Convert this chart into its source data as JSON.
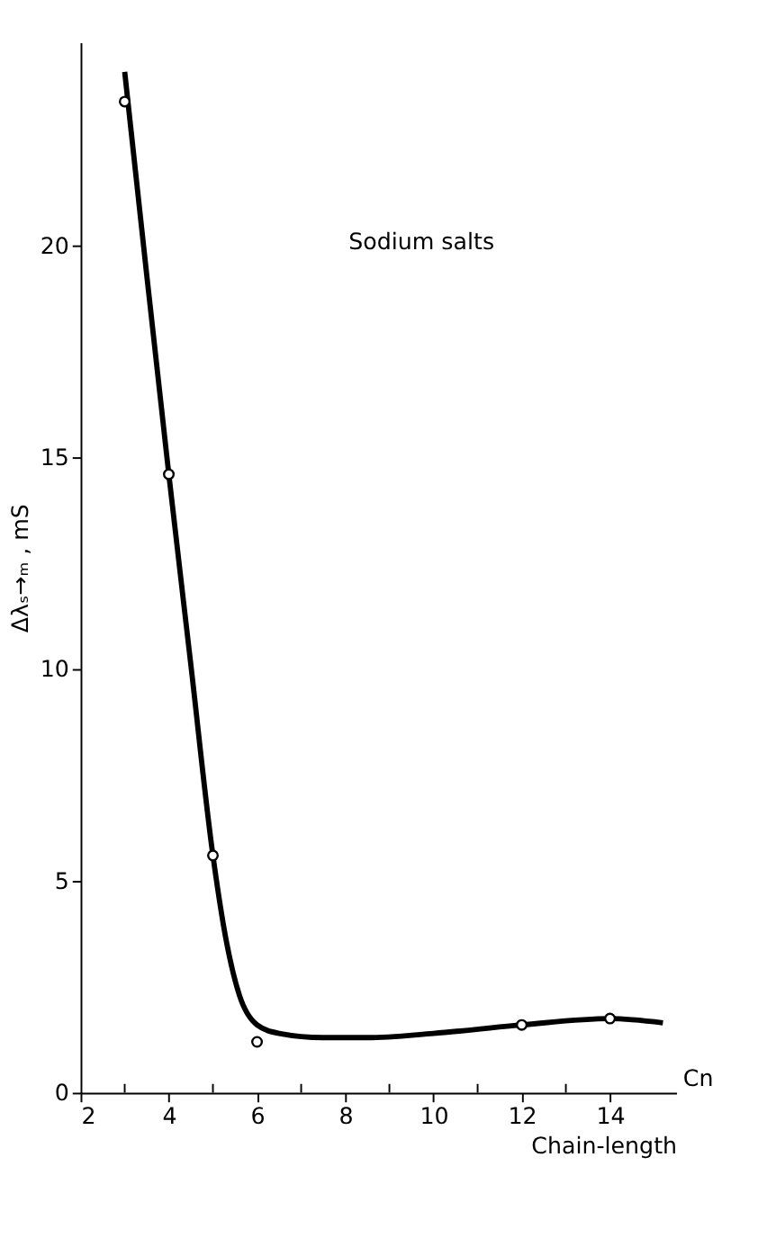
{
  "chart_data": {
    "type": "scatter",
    "xlabel": "Chain-length",
    "ylabel": "Δλₛ→ₘ , mS",
    "annotations": [
      "Sodium salts",
      "Cn"
    ],
    "xlim": [
      2,
      15.5
    ],
    "ylim": [
      0,
      24.8
    ],
    "xticks": [
      2,
      {
        "value": 3,
        "label": null
      },
      4,
      {
        "value": 5,
        "label": null
      },
      6,
      {
        "value": 7,
        "label": null
      },
      8,
      {
        "value": 9,
        "label": null
      },
      10,
      {
        "value": 11,
        "label": null
      },
      12,
      {
        "value": 13,
        "label": null
      },
      14
    ],
    "yticks": [
      0,
      5,
      10,
      15,
      20
    ],
    "grid": false,
    "series": [
      {
        "type": "line",
        "color": "#000000",
        "marker": "none",
        "x": [
          3.0,
          3.5,
          4.0,
          4.5,
          5.0,
          5.3,
          5.6,
          6.0,
          6.5,
          7.5,
          8.5,
          10,
          12,
          14,
          15.2
        ],
        "values": [
          24.1,
          19.3,
          14.6,
          10.1,
          5.6,
          3.6,
          2.3,
          1.6,
          1.4,
          1.3,
          1.3,
          1.4,
          1.6,
          1.75,
          1.65
        ]
      },
      {
        "color": "#000000",
        "marker": "circle",
        "x": [
          3,
          4,
          5,
          6,
          12,
          14
        ],
        "values": [
          23.4,
          14.6,
          5.6,
          1.2,
          1.6,
          1.75
        ]
      }
    ]
  }
}
